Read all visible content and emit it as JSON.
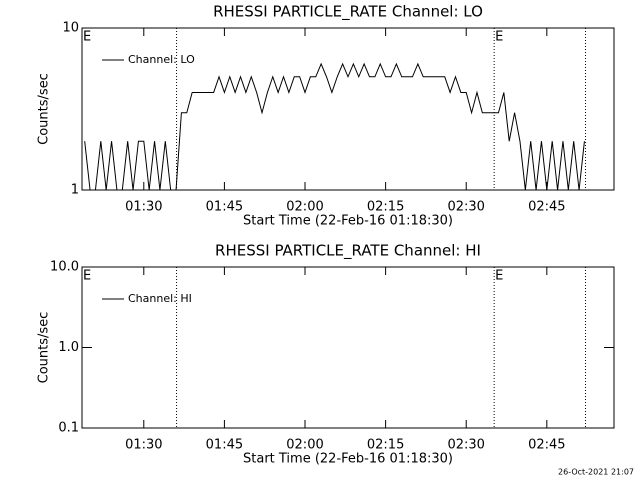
{
  "charts": [
    {
      "chart_data": {
        "type": "line",
        "title": "RHESSI PARTICLE_RATE Channel: LO",
        "xlabel": "Start Time (22-Feb-16 01:18:30)",
        "ylabel": "Counts/sec",
        "xlim": [
          78.5,
          177.5
        ],
        "xticks": [
          {
            "value": 90,
            "label": "01:30"
          },
          {
            "value": 105,
            "label": "01:45"
          },
          {
            "value": 120,
            "label": "02:00"
          },
          {
            "value": 135,
            "label": "02:15"
          },
          {
            "value": 150,
            "label": "02:30"
          },
          {
            "value": 165,
            "label": "02:45"
          }
        ],
        "ylim": [
          1,
          10
        ],
        "yticks": [
          1,
          10
        ],
        "log_y": true,
        "legend": "upper left",
        "vlines": [
          96.1,
          155.2,
          172.2
        ],
        "annotations": [
          {
            "text": "E",
            "x": 78.5
          },
          {
            "text": "E",
            "x": 155.2
          }
        ],
        "x": [
          79,
          80,
          81,
          82,
          83,
          84,
          85,
          86,
          87,
          88,
          89,
          90,
          91,
          92,
          93,
          94,
          95,
          96,
          97,
          98,
          99,
          100,
          101,
          102,
          103,
          104,
          105,
          106,
          107,
          108,
          109,
          110,
          111,
          112,
          113,
          114,
          115,
          116,
          117,
          118,
          119,
          120,
          121,
          122,
          123,
          124,
          125,
          126,
          127,
          128,
          129,
          130,
          131,
          132,
          133,
          134,
          135,
          136,
          137,
          138,
          139,
          140,
          141,
          142,
          143,
          144,
          145,
          146,
          147,
          148,
          149,
          150,
          151,
          152,
          153,
          154,
          155,
          156,
          157,
          158,
          159,
          160,
          161,
          162,
          163,
          164,
          165,
          166,
          167,
          168,
          169,
          170,
          171,
          172
        ],
        "series": [
          {
            "name": "Channel: LO",
            "color": "#000000",
            "values": [
              2,
              1,
              1,
              2,
              1,
              2,
              1,
              1,
              2,
              1,
              2,
              2,
              1,
              2,
              1,
              2,
              1,
              1,
              3,
              3,
              4,
              4,
              4,
              4,
              4,
              5,
              4,
              5,
              4,
              5,
              4,
              5,
              4,
              3,
              4,
              5,
              4,
              5,
              4,
              5,
              5,
              4,
              5,
              5,
              6,
              5,
              4,
              5,
              6,
              5,
              6,
              5,
              6,
              5,
              5,
              6,
              5,
              5,
              6,
              5,
              5,
              5,
              6,
              5,
              5,
              5,
              5,
              5,
              4,
              5,
              4,
              4,
              3,
              4,
              3,
              3,
              3,
              3,
              4,
              2,
              3,
              2,
              1,
              2,
              1,
              2,
              1,
              2,
              1,
              2,
              1,
              2,
              1,
              2
            ]
          }
        ]
      }
    },
    {
      "chart_data": {
        "type": "line",
        "title": "RHESSI PARTICLE_RATE Channel: HI",
        "xlabel": "Start Time (22-Feb-16 01:18:30)",
        "ylabel": "Counts/sec",
        "xlim": [
          78.5,
          177.5
        ],
        "xticks": [
          {
            "value": 90,
            "label": "01:30"
          },
          {
            "value": 105,
            "label": "01:45"
          },
          {
            "value": 120,
            "label": "02:00"
          },
          {
            "value": 135,
            "label": "02:15"
          },
          {
            "value": 150,
            "label": "02:30"
          },
          {
            "value": 165,
            "label": "02:45"
          }
        ],
        "ylim": [
          0.1,
          10
        ],
        "yticks": [
          0.1,
          {
            "value": 1,
            "label": "1.0"
          },
          {
            "value": 10,
            "label": "10.0"
          }
        ],
        "log_y": true,
        "legend": "upper left",
        "vlines": [
          96.1,
          155.2,
          172.2
        ],
        "annotations": [
          {
            "text": "E",
            "x": 78.5
          },
          {
            "text": "E",
            "x": 155.2
          }
        ],
        "x": [],
        "series": [
          {
            "name": "Channel: HI",
            "color": "#000000",
            "values": []
          }
        ]
      }
    }
  ],
  "footer": "26-Oct-2021 21:07"
}
